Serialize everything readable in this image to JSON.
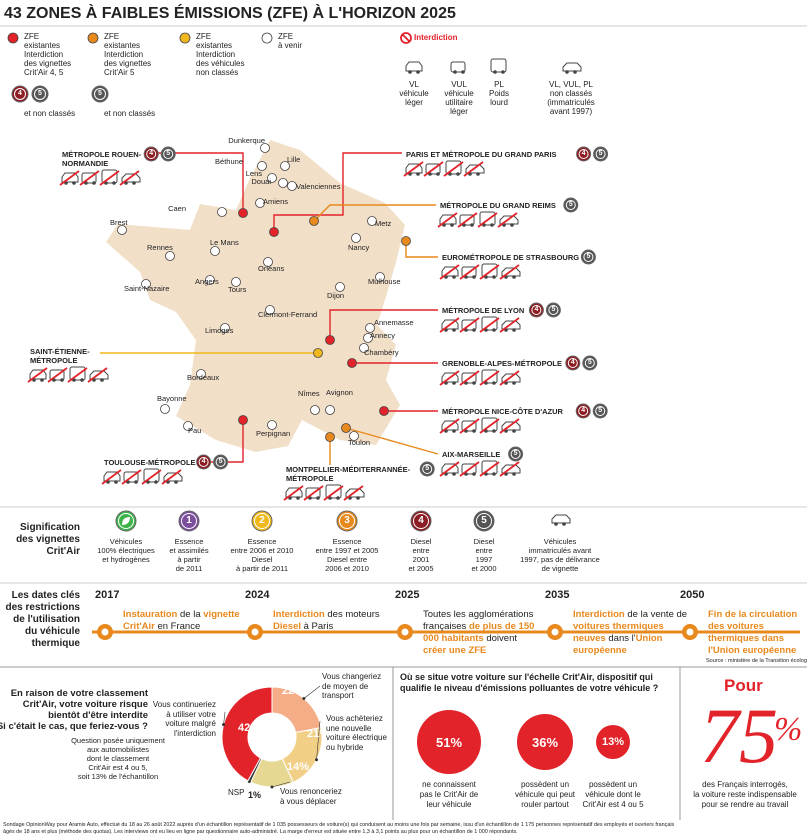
{
  "title": "43 ZONES À FAIBLES ÉMISSIONS (ZFE) À L'HORIZON 2025",
  "zfe_legend": [
    {
      "color": "#e2232a",
      "lines": [
        "ZFE",
        "existantes",
        "Interdiction",
        "des vignettes",
        "Crit'Air 4, 5"
      ],
      "badges": [
        "4",
        "5"
      ],
      "note": "et non classés"
    },
    {
      "color": "#e8891d",
      "lines": [
        "ZFE",
        "existantes",
        "Interdiction",
        "des vignettes",
        "Crit'Air 5"
      ],
      "badges": [
        "5"
      ],
      "note": "et non classés"
    },
    {
      "color": "#f0b81c",
      "lines": [
        "ZFE",
        "existantes",
        "Interdiction",
        "des véhicules",
        "non classés"
      ]
    },
    {
      "color": "#ffffff",
      "lines": [
        "ZFE",
        "à venir"
      ]
    }
  ],
  "interdiction": "Interdiction",
  "vehicles": [
    {
      "lines": [
        "VL",
        "véhicule",
        "léger"
      ]
    },
    {
      "lines": [
        "VUL",
        "véhicule",
        "utilitaire",
        "léger"
      ]
    },
    {
      "lines": [
        "PL",
        "Poids",
        "lourd"
      ]
    },
    {
      "lines": [
        "VL, VUL, PL",
        "non classés",
        "(immatriculés",
        "avant 1997)"
      ]
    }
  ],
  "cities": [
    "Dunkerque",
    "Béthune",
    "Lille",
    "Lens",
    "Douai",
    "Valenciennes",
    "Amiens",
    "Caen",
    "Brest",
    "Rennes",
    "Le Mans",
    "Angers",
    "Tours",
    "Orléans",
    "Saint-Nazaire",
    "Metz",
    "Nancy",
    "Mulhouse",
    "Dijon",
    "Clermont-Ferrand",
    "Limoges",
    "Annemasse",
    "Annecy",
    "Chambéry",
    "Bordeaux",
    "Bayonne",
    "Pau",
    "Perpignan",
    "Nîmes",
    "Avignon",
    "Toulon"
  ],
  "zones": [
    {
      "name": [
        "MÉTROPOLE ROUEN-",
        "NORMANDIE"
      ],
      "color": "#e2232a",
      "badges": [
        "4",
        "5"
      ]
    },
    {
      "name": [
        "PARIS ET MÉTROPOLE DU GRAND PARIS"
      ],
      "color": "#e2232a",
      "badges": [
        "4",
        "5"
      ]
    },
    {
      "name": [
        "MÉTROPOLE DU GRAND REIMS"
      ],
      "color": "#e8891d",
      "badges": [
        "5"
      ]
    },
    {
      "name": [
        "EUROMÉTROPOLE DE STRASBOURG"
      ],
      "color": "#e8891d",
      "badges": [
        "5"
      ]
    },
    {
      "name": [
        "MÉTROPOLE DE LYON"
      ],
      "color": "#e2232a",
      "badges": [
        "4",
        "5"
      ]
    },
    {
      "name": [
        "GRENOBLE-ALPES-MÉTROPOLE"
      ],
      "color": "#e2232a",
      "badges": [
        "4",
        "5"
      ]
    },
    {
      "name": [
        "SAINT-ÉTIENNE-",
        "MÉTROPOLE"
      ],
      "color": "#f0b81c",
      "badges": []
    },
    {
      "name": [
        "MÉTROPOLE NICE-CÔTE D'AZUR"
      ],
      "color": "#e2232a",
      "badges": [
        "4",
        "5"
      ]
    },
    {
      "name": [
        "AIX-MARSEILLE"
      ],
      "color": "#e8891d",
      "badges": [
        "5"
      ]
    },
    {
      "name": [
        "TOULOUSE-MÉTROPOLE"
      ],
      "color": "#e2232a",
      "badges": [
        "4",
        "5"
      ]
    },
    {
      "name": [
        "MONTPELLIER-MÉDITERRANNÉE-",
        "MÉTROPOLE"
      ],
      "color": "#e8891d",
      "badges": [
        "5"
      ]
    }
  ],
  "critair": {
    "heading": [
      "Signification",
      "des vignettes",
      "Crit'Air"
    ],
    "items": [
      {
        "badge": "",
        "color": "#3db24b",
        "lines": [
          "Véhicules",
          "100% électriques",
          "et hydrogènes"
        ]
      },
      {
        "badge": "1",
        "color": "#7b4f9e",
        "lines": [
          "Essence",
          "et assimilés",
          "à partir",
          "de 2011"
        ]
      },
      {
        "badge": "2",
        "color": "#f0b81c",
        "lines": [
          "Essence",
          "entre 2006 et 2010",
          "Diesel",
          "à partir de 2011"
        ]
      },
      {
        "badge": "3",
        "color": "#e8891d",
        "lines": [
          "Essence",
          "entre 1997 et 2005",
          "Diesel entre",
          "2006 et 2010"
        ]
      },
      {
        "badge": "4",
        "color": "#8b1d23",
        "lines": [
          "Diesel",
          "entre",
          "2001",
          "et 2005"
        ]
      },
      {
        "badge": "5",
        "color": "#555555",
        "lines": [
          "Diesel",
          "entre",
          "1997",
          "et 2000"
        ]
      },
      {
        "badge": "",
        "color": "#ffffff",
        "lines": [
          "Véhicules",
          "immatriculés avant",
          "1997, pas de délivrance",
          "de vignette"
        ]
      }
    ]
  },
  "timeline": {
    "heading": [
      "Les dates clés",
      "des restrictions",
      "de l'utilisation",
      "du véhicule",
      "thermique"
    ],
    "events": [
      {
        "year": "2017",
        "text": [
          {
            "text": "Instauration",
            "color": "#e8891d"
          },
          " de la ",
          {
            "text": "vignette Crit'Air",
            "color": "#e8891d"
          },
          " en France"
        ]
      },
      {
        "year": "2024",
        "text": [
          {
            "text": "Interdiction",
            "color": "#e8891d"
          },
          " des moteurs ",
          {
            "text": "Diesel",
            "color": "#e8891d"
          },
          " à Paris"
        ]
      },
      {
        "year": "2025",
        "text": [
          "Toutes les agglomérations françaises ",
          {
            "text": "de plus de 150 000 habitants",
            "color": "#e8891d"
          },
          " doivent ",
          {
            "text": "créer une ZFE",
            "color": "#e8891d"
          }
        ]
      },
      {
        "year": "2035",
        "text": [
          {
            "text": "Interdiction",
            "color": "#e8891d"
          },
          " de la vente de ",
          {
            "text": "voitures thermiques neuves",
            "color": "#e8891d"
          },
          " dans l'",
          {
            "text": "Union européenne",
            "color": "#e8891d"
          }
        ]
      },
      {
        "year": "2050",
        "text": [
          {
            "text": "Fin de la circulation des voitures thermiques dans l'Union européenne",
            "color": "#e8891d"
          }
        ]
      }
    ]
  },
  "source": "Source : ministère de la Transition écologique",
  "survey": {
    "question": [
      "En raison de votre classement",
      "Crit'Air, votre voiture risque",
      "bientôt d'être interdite",
      "Si c'était le cas, que feriez-vous ?"
    ],
    "note": [
      "Question posée uniquement",
      "aux automobilistes",
      "dont le classement",
      "Crit'Air est 4 ou 5,",
      "soit 13% de l'échantillon"
    ]
  },
  "chart_data": {
    "type": "pie",
    "categories": [
      "Vous changeriez de moyen de transport",
      "Vous achèteriez une nouvelle voiture électrique ou hybride",
      "Vous renonceriez à vous déplacer",
      "NSP",
      "Vous continueriez à utiliser votre voiture malgré l'interdiction"
    ],
    "values": [
      22,
      21,
      14,
      1,
      42
    ],
    "value_labels": [
      "22%",
      "21%",
      "14%",
      "1%",
      "42%"
    ],
    "colors": [
      "#f4ad86",
      "#f2cf86",
      "#e6d892",
      "#333333",
      "#e2232a"
    ]
  },
  "bubbles": {
    "question": [
      "Où se situe votre voiture sur l'échelle Crit'Air, dispositif qui",
      "qualifie le niveau d'émissions polluantes de votre véhicule ?"
    ],
    "items": [
      {
        "value": "51%",
        "lines": [
          "ne connaissent",
          "pas le Crit'Air de",
          "leur véhicule"
        ]
      },
      {
        "value": "36%",
        "lines": [
          "possèdent un",
          "véhicule qui peut",
          "rouler partout"
        ]
      },
      {
        "value": "13%",
        "lines": [
          "possèdent un",
          "véhicule dont le",
          "Crit'Air est 4 ou 5"
        ]
      }
    ]
  },
  "pour": {
    "lead": "Pour",
    "value": "75",
    "unit": "%",
    "lines": [
      "des Français interrogés,",
      "la voiture reste indispensable",
      "pour se rendre au travail"
    ]
  },
  "footer": [
    "Sondage OpinionWay pour Aramis Auto, effectué du 18 au 26 août 2022 auprès d'un échantillon représentatif de 1 035 possesseurs de voiture(s) qui conduisent au moins une fois par semaine, issu d'un échantillon de 1 175 personnes représentatif des employés et ouvriers français",
    "âgés de 18 ans et plus (méthode des quotas). Les interviews ont eu lieu en ligne par questionnaire auto-administré. La marge d'erreur est située entre 1,3 à 3,1 points au plus pour un échantillon de 1 000 répondants."
  ]
}
